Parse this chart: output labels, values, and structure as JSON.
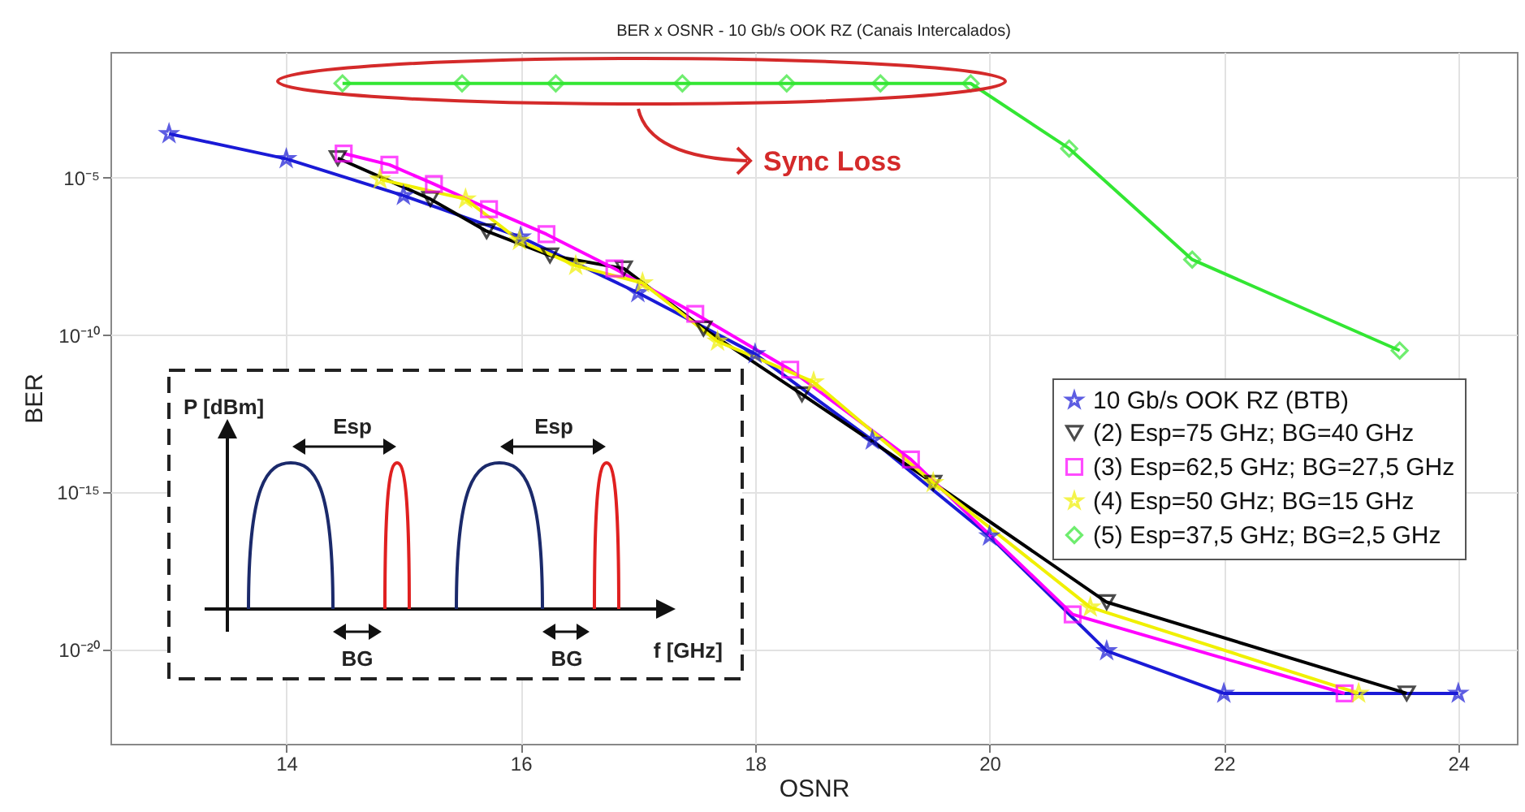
{
  "chart_data": {
    "type": "line",
    "title": "BER x OSNR - 10 Gb/s OOK RZ (Canais Intercalados)",
    "xlabel": "OSNR",
    "ylabel": "BER",
    "xlim": [
      12.5,
      24.5
    ],
    "xticks": [
      14,
      16,
      18,
      20,
      22,
      24
    ],
    "ylim": [
      1e-23,
      0.1
    ],
    "yticks": [
      {
        "value": 1e-05,
        "label": "10⁻⁵"
      },
      {
        "value": 1e-10,
        "label": "10⁻¹⁰"
      },
      {
        "value": 1e-15,
        "label": "10⁻¹⁵"
      },
      {
        "value": 1e-20,
        "label": "10⁻²⁰"
      }
    ],
    "log": true,
    "grid": true,
    "legend": "right",
    "series": [
      {
        "name": "10 Gb/s OOK RZ (BTB)",
        "color": "#1a1ad6",
        "marker": "star",
        "x": [
          13,
          14,
          15,
          16,
          17,
          18,
          19,
          20,
          21,
          22,
          24
        ],
        "values": [
          0.00025,
          4e-05,
          2.7e-06,
          1.3e-07,
          2.2e-09,
          2.5e-11,
          4.5e-14,
          4e-17,
          9e-21,
          4e-22,
          4e-22
        ]
      },
      {
        "name": "(2) Esp=75 GHz; BG=40 GHz",
        "color": "#000000",
        "marker": "triangle",
        "x": [
          14.44,
          15.23,
          15.71,
          16.25,
          16.88,
          17.56,
          18.4,
          19.52,
          21.0,
          23.56
        ],
        "values": [
          4.2e-05,
          2.1e-06,
          2e-07,
          3.4e-08,
          1.3e-08,
          1.6e-10,
          1.3e-12,
          2e-15,
          3.2e-19,
          4e-22
        ]
      },
      {
        "name": "(3) Esp=62,5 GHz; BG=27,5 GHz",
        "color": "#ff00ff",
        "marker": "square",
        "x": [
          14.49,
          14.88,
          15.26,
          15.73,
          16.22,
          16.8,
          17.49,
          18.3,
          19.33,
          20.71,
          23.03
        ],
        "values": [
          5.9e-05,
          2.6e-05,
          6.3e-06,
          1e-06,
          1.6e-07,
          1.3e-08,
          4.7e-10,
          7.9e-12,
          1.1e-14,
          1.3e-19,
          4e-22
        ]
      },
      {
        "name": "(4) Esp=50 GHz; BG=15 GHz",
        "color": "#f0f000",
        "marker": "star",
        "x": [
          14.8,
          15.53,
          15.99,
          16.47,
          17.04,
          17.68,
          18.5,
          19.52,
          20.86,
          23.15
        ],
        "values": [
          8.9e-06,
          2.1e-06,
          1e-07,
          1.6e-08,
          4.5e-09,
          6.3e-11,
          3.2e-12,
          2e-15,
          2.2e-19,
          4e-22
        ]
      },
      {
        "name": "(5) Esp=37,5 GHz; BG=2,5 GHz",
        "color": "#33e633",
        "marker": "diamond",
        "x": [
          14.48,
          15.5,
          16.3,
          17.38,
          18.27,
          19.07,
          19.84,
          20.68,
          21.73,
          23.5
        ],
        "values": [
          0.01,
          0.01,
          0.01,
          0.01,
          0.01,
          0.01,
          0.01,
          8.5e-05,
          2.5e-08,
          3.2e-11
        ]
      }
    ],
    "annotations": [
      "Sync Loss",
      "P [dBm]",
      "Esp",
      "Esp",
      "BG",
      "BG",
      "f [GHz]"
    ]
  }
}
